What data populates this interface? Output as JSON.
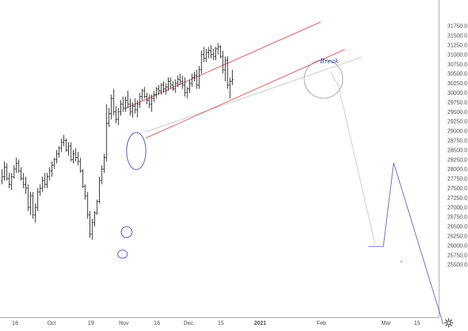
{
  "chart_data": {
    "type": "ohlc",
    "title": "",
    "xlabel": "",
    "ylabel": "",
    "ylim": [
      25250,
      31900
    ],
    "x_tick_labels": [
      "16",
      "Oct",
      "19",
      "Nov",
      "16",
      "Dec",
      "15",
      "2021",
      "Feb",
      "Mar",
      "15"
    ],
    "y_tick_labels": [
      "31750.0",
      "31500.0",
      "31250.0",
      "31000.0",
      "30750.0",
      "30500.0",
      "30250.0",
      "30000.0",
      "29750.0",
      "29500.0",
      "29250.0",
      "29000.0",
      "28750.0",
      "28500.0",
      "28250.0",
      "28000.0",
      "27750.0",
      "27500.0",
      "27250.0",
      "27000.0",
      "26750.0",
      "26500.0",
      "26250.0",
      "26000.0",
      "25750.0",
      "25500.0"
    ],
    "bar_spacing": 3.45,
    "bars": [
      [
        27700,
        28000,
        27600,
        27800
      ],
      [
        27800,
        28200,
        27700,
        28050
      ],
      [
        28050,
        28150,
        27700,
        27750
      ],
      [
        27750,
        27900,
        27500,
        27600
      ],
      [
        27600,
        27900,
        27450,
        27800
      ],
      [
        27800,
        28100,
        27750,
        28000
      ],
      [
        28000,
        28300,
        27900,
        28150
      ],
      [
        28150,
        28250,
        27900,
        27950
      ],
      [
        27950,
        28050,
        27700,
        27750
      ],
      [
        27750,
        27900,
        27500,
        27600
      ],
      [
        27600,
        27800,
        27350,
        27500
      ],
      [
        27500,
        27600,
        26900,
        27000
      ],
      [
        27000,
        27400,
        26800,
        27300
      ],
      [
        27300,
        27400,
        26700,
        26800
      ],
      [
        26800,
        27100,
        26600,
        27000
      ],
      [
        27000,
        27500,
        26900,
        27400
      ],
      [
        27400,
        27600,
        27300,
        27500
      ],
      [
        27500,
        27800,
        27400,
        27700
      ],
      [
        27700,
        27900,
        27500,
        27600
      ],
      [
        27600,
        27900,
        27500,
        27800
      ],
      [
        27800,
        28050,
        27700,
        27950
      ],
      [
        27950,
        28200,
        27800,
        28100
      ],
      [
        28100,
        28300,
        28000,
        28250
      ],
      [
        28250,
        28500,
        28150,
        28400
      ],
      [
        28400,
        28600,
        28300,
        28550
      ],
      [
        28550,
        28800,
        28450,
        28700
      ],
      [
        28700,
        28900,
        28600,
        28750
      ],
      [
        28750,
        28800,
        28450,
        28500
      ],
      [
        28500,
        28700,
        28350,
        28600
      ],
      [
        28600,
        28700,
        28200,
        28250
      ],
      [
        28250,
        28500,
        28150,
        28400
      ],
      [
        28400,
        28550,
        28200,
        28300
      ],
      [
        28300,
        28450,
        28100,
        28200
      ],
      [
        28200,
        28300,
        27900,
        27950
      ],
      [
        27950,
        28000,
        27500,
        27550
      ],
      [
        27550,
        27600,
        27200,
        27300
      ],
      [
        27300,
        27400,
        26700,
        26800
      ],
      [
        26800,
        26900,
        26200,
        26300
      ],
      [
        26300,
        26700,
        26150,
        26600
      ],
      [
        26600,
        26900,
        26500,
        26850
      ],
      [
        26850,
        27200,
        26800,
        27150
      ],
      [
        27150,
        27800,
        27100,
        27700
      ],
      [
        27700,
        28100,
        27600,
        28000
      ],
      [
        28000,
        28400,
        27900,
        28300
      ],
      [
        28300,
        29700,
        28200,
        29200
      ],
      [
        29200,
        29600,
        29100,
        29450
      ],
      [
        29450,
        29950,
        29300,
        29850
      ],
      [
        29850,
        30100,
        29400,
        29500
      ],
      [
        29500,
        29650,
        29200,
        29300
      ],
      [
        29300,
        29600,
        29150,
        29500
      ],
      [
        29500,
        29800,
        29400,
        29700
      ],
      [
        29700,
        29900,
        29500,
        29600
      ],
      [
        29600,
        29900,
        29500,
        29800
      ],
      [
        29800,
        30050,
        29600,
        29700
      ],
      [
        29700,
        29850,
        29400,
        29500
      ],
      [
        29500,
        29750,
        29350,
        29650
      ],
      [
        29650,
        29850,
        29450,
        29550
      ],
      [
        29550,
        29800,
        29350,
        29700
      ],
      [
        29700,
        30000,
        29600,
        29900
      ],
      [
        29900,
        30100,
        29800,
        30050
      ],
      [
        30050,
        30150,
        29850,
        29900
      ],
      [
        29900,
        30000,
        29700,
        29800
      ],
      [
        29800,
        29950,
        29600,
        29700
      ],
      [
        29700,
        29950,
        29500,
        29850
      ],
      [
        29850,
        30050,
        29750,
        29950
      ],
      [
        29950,
        30150,
        29850,
        30100
      ],
      [
        30100,
        30200,
        29950,
        30050
      ],
      [
        30050,
        30250,
        29950,
        30200
      ],
      [
        30200,
        30300,
        30000,
        30100
      ],
      [
        30100,
        30250,
        29950,
        30150
      ],
      [
        30150,
        30400,
        30050,
        30300
      ],
      [
        30300,
        30400,
        30100,
        30200
      ],
      [
        30200,
        30300,
        30050,
        30100
      ],
      [
        30100,
        30350,
        30000,
        30250
      ],
      [
        30250,
        30450,
        30150,
        30350
      ],
      [
        30350,
        30500,
        30200,
        30300
      ],
      [
        30300,
        30450,
        30100,
        30200
      ],
      [
        30200,
        30400,
        29900,
        30000
      ],
      [
        30000,
        30150,
        29850,
        30100
      ],
      [
        30100,
        30350,
        30000,
        30250
      ],
      [
        30250,
        30500,
        30150,
        30400
      ],
      [
        30400,
        30550,
        30300,
        30450
      ],
      [
        30450,
        30600,
        30100,
        30200
      ],
      [
        30200,
        30700,
        30100,
        30600
      ],
      [
        30600,
        31100,
        30500,
        31000
      ],
      [
        31000,
        31200,
        30800,
        30900
      ],
      [
        30900,
        31150,
        30800,
        31050
      ],
      [
        31050,
        31200,
        30900,
        31100
      ],
      [
        31100,
        31250,
        30900,
        31000
      ],
      [
        31000,
        31150,
        30850,
        30950
      ],
      [
        30950,
        31200,
        30850,
        31150
      ],
      [
        31150,
        31300,
        31000,
        31200
      ],
      [
        31200,
        31250,
        30900,
        30950
      ],
      [
        30950,
        31100,
        30500,
        30600
      ],
      [
        30600,
        30950,
        30300,
        30850
      ],
      [
        30850,
        30950,
        30100,
        30200
      ],
      [
        30200,
        30400,
        29850,
        30300
      ],
      [
        30300,
        30600,
        30200,
        30350
      ]
    ],
    "channel_color": "#e04f4f",
    "projection_color": "#5a62c8",
    "ellipse_color": "#3f4ec8",
    "trendline_color": "#bdbdbd",
    "annotations": [
      "Break"
    ],
    "grid": false
  },
  "toolbar": {
    "settings_icon": "gear-icon"
  }
}
